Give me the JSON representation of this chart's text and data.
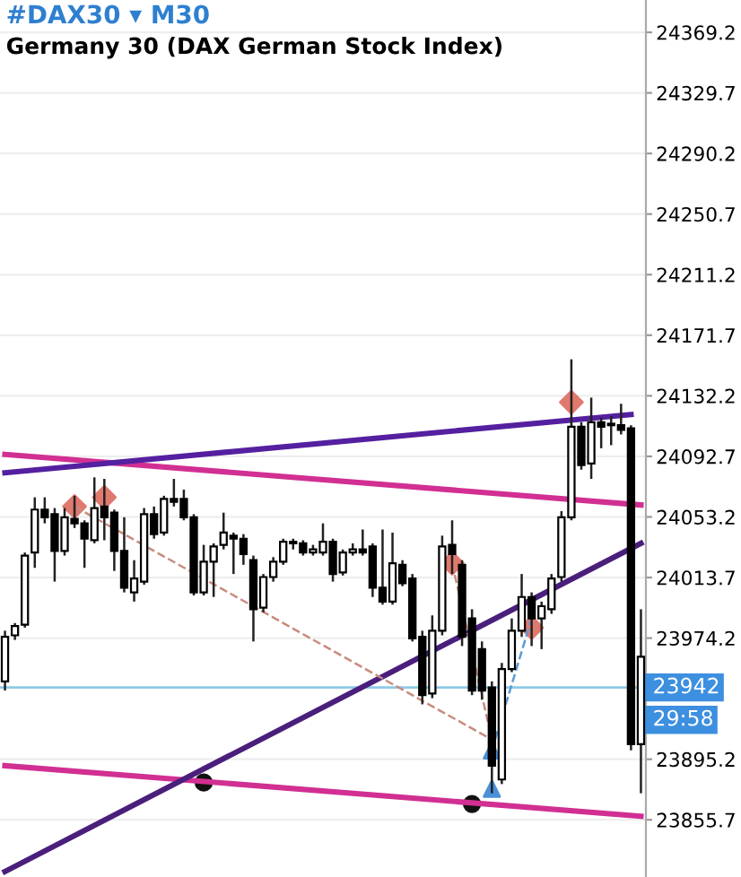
{
  "chart_data": {
    "type": "candlestick",
    "title": "#DAX30 ▾ M30",
    "subtitle": "Germany 30 (DAX German Stock Index)",
    "categories": [
      null,
      null,
      null,
      null,
      null,
      null,
      null,
      null,
      null,
      null,
      null,
      null,
      null,
      null,
      null,
      null,
      null,
      null,
      null,
      null,
      null,
      null,
      null,
      null,
      null,
      null,
      null,
      null,
      null,
      null,
      null,
      null,
      null,
      null,
      null,
      null,
      null,
      null,
      null,
      null,
      null,
      null,
      null,
      null,
      null,
      null,
      null,
      null,
      null,
      null,
      null,
      null,
      null,
      null,
      null,
      null,
      null,
      null,
      null,
      null,
      null,
      null,
      null,
      null,
      null
    ],
    "ohlc": [
      [
        23946,
        23979,
        23940,
        23975
      ],
      [
        23976,
        23984,
        23973,
        23982
      ],
      [
        23983,
        24030,
        23981,
        24028
      ],
      [
        24030,
        24066,
        24020,
        24058
      ],
      [
        24058,
        24066,
        24049,
        24053
      ],
      [
        24055,
        24059,
        24011,
        24031
      ],
      [
        24031,
        24059,
        24028,
        24053
      ],
      [
        24052,
        24067,
        24046,
        24049
      ],
      [
        24049,
        24051,
        24020,
        24039
      ],
      [
        24038,
        24079,
        24036,
        24059
      ],
      [
        24060,
        24078,
        24038,
        24053
      ],
      [
        24056,
        24058,
        24018,
        24031
      ],
      [
        24031,
        24053,
        24004,
        24007
      ],
      [
        24004,
        24025,
        23998,
        24013
      ],
      [
        24011,
        24059,
        24009,
        24055
      ],
      [
        24055,
        24060,
        24039,
        24042
      ],
      [
        24043,
        24067,
        24041,
        24065
      ],
      [
        24065,
        24078,
        24060,
        24063
      ],
      [
        24065,
        24071,
        24051,
        24053
      ],
      [
        24053,
        24055,
        24002,
        24004
      ],
      [
        24004,
        24035,
        24002,
        24024
      ],
      [
        24024,
        24036,
        24001,
        24034
      ],
      [
        24035,
        24056,
        24032,
        24043
      ],
      [
        24041,
        24043,
        24016,
        24039
      ],
      [
        24039,
        24042,
        24022,
        24029
      ],
      [
        24025,
        24028,
        23972,
        23993
      ],
      [
        23994,
        24016,
        23991,
        24014
      ],
      [
        24014,
        24027,
        24011,
        24024
      ],
      [
        24024,
        24039,
        24022,
        24037
      ],
      [
        24037,
        24039,
        24032,
        24036
      ],
      [
        24036,
        24038,
        24028,
        24030
      ],
      [
        24030,
        24035,
        24028,
        24032
      ],
      [
        24030,
        24049,
        24028,
        24037
      ],
      [
        24037,
        24039,
        24011,
        24016
      ],
      [
        24017,
        24032,
        24015,
        24030
      ],
      [
        24030,
        24036,
        24028,
        24032
      ],
      [
        24032,
        24045,
        24028,
        24030
      ],
      [
        24034,
        24036,
        24001,
        24007
      ],
      [
        24007,
        24045,
        23996,
        23998
      ],
      [
        23998,
        24043,
        23996,
        24023
      ],
      [
        24022,
        24025,
        24008,
        24010
      ],
      [
        24013,
        24016,
        23972,
        23974
      ],
      [
        23975,
        23979,
        23931,
        23937
      ],
      [
        23938,
        23989,
        23935,
        23979
      ],
      [
        23979,
        24041,
        23976,
        24034
      ],
      [
        24035,
        24051,
        24016,
        24029
      ],
      [
        24022,
        24025,
        23969,
        23975
      ],
      [
        23987,
        23993,
        23937,
        23940
      ],
      [
        23967,
        23972,
        23934,
        23940
      ],
      [
        23942,
        23946,
        23873,
        23891
      ],
      [
        23882,
        23958,
        23879,
        23954
      ],
      [
        23954,
        23987,
        23952,
        23979
      ],
      [
        23979,
        24016,
        23975,
        24001
      ],
      [
        24001,
        24004,
        23969,
        23987
      ],
      [
        23987,
        23998,
        23967,
        23995
      ],
      [
        23993,
        24016,
        23990,
        24013
      ],
      [
        24014,
        24057,
        24011,
        24053
      ],
      [
        24053,
        24156,
        24051,
        24112
      ],
      [
        24112,
        24115,
        24084,
        24087
      ],
      [
        24088,
        24131,
        24078,
        24115
      ],
      [
        24115,
        24118,
        24098,
        24112
      ],
      [
        24114,
        24119,
        24100,
        24113
      ],
      [
        24113,
        24127,
        24107,
        24110
      ],
      [
        24111,
        24113,
        23901,
        23905
      ],
      [
        23905,
        23993,
        23873,
        23962
      ]
    ],
    "series": [
      {
        "type": "line",
        "color": "#d12f92",
        "line_style": "solid",
        "values": [
          24094,
          null,
          null,
          null,
          null,
          null,
          null,
          null,
          null,
          null,
          null,
          null,
          null,
          null,
          null,
          null,
          null,
          null,
          null,
          null,
          null,
          null,
          null,
          null,
          null,
          null,
          null,
          null,
          null,
          null,
          null,
          null,
          null,
          null,
          null,
          null,
          null,
          null,
          null,
          null,
          null,
          null,
          null,
          null,
          null,
          null,
          null,
          null,
          null,
          null,
          null,
          null,
          null,
          null,
          null,
          null,
          null,
          null,
          null,
          null,
          null,
          null,
          null,
          null,
          24061
        ]
      },
      {
        "type": "line",
        "color": "#d12f92",
        "line_style": "solid",
        "values": [
          23891,
          null,
          null,
          null,
          null,
          null,
          null,
          null,
          null,
          null,
          null,
          null,
          null,
          null,
          null,
          null,
          null,
          null,
          null,
          null,
          null,
          null,
          null,
          null,
          null,
          null,
          null,
          null,
          null,
          null,
          null,
          null,
          null,
          null,
          null,
          null,
          null,
          null,
          null,
          null,
          null,
          null,
          null,
          null,
          null,
          null,
          null,
          null,
          null,
          null,
          null,
          null,
          null,
          null,
          null,
          null,
          null,
          null,
          null,
          null,
          null,
          null,
          null,
          null,
          23858
        ]
      },
      {
        "type": "line",
        "color": "#4a1f7c",
        "line_style": "solid",
        "values": [
          23822,
          null,
          null,
          null,
          null,
          null,
          null,
          null,
          null,
          null,
          null,
          null,
          null,
          null,
          null,
          null,
          null,
          null,
          null,
          null,
          null,
          null,
          null,
          null,
          null,
          null,
          null,
          null,
          null,
          null,
          null,
          null,
          null,
          null,
          null,
          null,
          null,
          null,
          null,
          null,
          null,
          null,
          null,
          null,
          null,
          null,
          null,
          null,
          null,
          null,
          null,
          null,
          null,
          null,
          null,
          null,
          null,
          null,
          null,
          null,
          null,
          null,
          null,
          null,
          24036
        ]
      },
      {
        "type": "line",
        "color": "#5420a0",
        "line_style": "solid",
        "values": [
          24082,
          null,
          null,
          null,
          null,
          null,
          null,
          null,
          null,
          null,
          null,
          null,
          null,
          null,
          null,
          null,
          null,
          null,
          null,
          null,
          null,
          null,
          null,
          null,
          null,
          null,
          null,
          null,
          null,
          null,
          null,
          null,
          null,
          null,
          null,
          null,
          null,
          null,
          null,
          null,
          null,
          null,
          null,
          null,
          null,
          null,
          null,
          null,
          null,
          null,
          null,
          null,
          null,
          null,
          null,
          null,
          null,
          null,
          null,
          null,
          null,
          null,
          null,
          24120,
          null
        ]
      },
      {
        "type": "line",
        "color": "#c98b7e",
        "line_style": "dashed",
        "values": [
          null,
          null,
          null,
          null,
          null,
          null,
          null,
          24060,
          null,
          null,
          null,
          null,
          null,
          null,
          null,
          null,
          null,
          null,
          null,
          null,
          null,
          null,
          null,
          null,
          null,
          null,
          null,
          null,
          null,
          null,
          null,
          null,
          null,
          null,
          null,
          null,
          null,
          null,
          null,
          null,
          null,
          null,
          null,
          null,
          null,
          null,
          null,
          null,
          null,
          23908,
          null,
          null,
          null,
          null,
          null,
          null,
          null,
          null,
          null,
          null,
          null,
          null,
          null,
          null,
          null
        ]
      },
      {
        "type": "line",
        "color": "#c98b7e",
        "line_style": "dashed",
        "values": [
          null,
          null,
          null,
          null,
          null,
          null,
          null,
          null,
          null,
          null,
          null,
          null,
          null,
          null,
          null,
          null,
          null,
          null,
          null,
          null,
          null,
          null,
          null,
          null,
          null,
          null,
          null,
          null,
          null,
          null,
          null,
          null,
          null,
          null,
          null,
          null,
          null,
          null,
          null,
          null,
          null,
          null,
          null,
          null,
          null,
          24023,
          null,
          null,
          null,
          23908,
          null,
          null,
          null,
          null,
          null,
          null,
          null,
          null,
          null,
          null,
          null,
          null,
          null,
          null,
          null
        ]
      },
      {
        "type": "line",
        "color": "#5b9bd5",
        "line_style": "dashed",
        "values": [
          null,
          null,
          null,
          null,
          null,
          null,
          null,
          null,
          null,
          null,
          null,
          null,
          null,
          null,
          null,
          null,
          null,
          null,
          null,
          null,
          null,
          null,
          null,
          null,
          null,
          null,
          null,
          null,
          null,
          null,
          null,
          null,
          null,
          null,
          null,
          null,
          null,
          null,
          null,
          null,
          null,
          null,
          null,
          null,
          null,
          null,
          null,
          null,
          null,
          23901,
          null,
          null,
          null,
          23987,
          null,
          null,
          null,
          null,
          null,
          null,
          null,
          null,
          null,
          null,
          null
        ]
      },
      {
        "type": "scatter",
        "color": "#e0796e",
        "marker": "diamond",
        "values": [
          null,
          null,
          null,
          null,
          null,
          null,
          null,
          24060,
          null,
          null,
          24066,
          null,
          null,
          null,
          null,
          null,
          null,
          null,
          null,
          null,
          null,
          null,
          null,
          null,
          null,
          null,
          null,
          null,
          null,
          null,
          null,
          null,
          null,
          null,
          null,
          null,
          null,
          null,
          null,
          null,
          null,
          null,
          null,
          null,
          null,
          24023,
          null,
          null,
          null,
          null,
          null,
          null,
          null,
          23981,
          null,
          null,
          null,
          24128,
          null,
          null,
          null,
          null,
          null,
          null,
          null
        ]
      },
      {
        "type": "scatter",
        "color": "#4a90d9",
        "marker": "triangle",
        "values": [
          null,
          null,
          null,
          null,
          null,
          null,
          null,
          null,
          null,
          null,
          null,
          null,
          null,
          null,
          null,
          null,
          null,
          null,
          null,
          null,
          null,
          null,
          null,
          null,
          null,
          null,
          null,
          null,
          null,
          null,
          null,
          null,
          null,
          null,
          null,
          null,
          null,
          null,
          null,
          null,
          null,
          null,
          null,
          null,
          null,
          null,
          null,
          null,
          null,
          23901,
          null,
          null,
          null,
          null,
          null,
          null,
          null,
          null,
          null,
          null,
          null,
          null,
          null,
          null,
          null
        ]
      },
      {
        "type": "scatter",
        "color": "#4a90d9",
        "marker": "triangle",
        "values": [
          null,
          null,
          null,
          null,
          null,
          null,
          null,
          null,
          null,
          null,
          null,
          null,
          null,
          null,
          null,
          null,
          null,
          null,
          null,
          null,
          null,
          null,
          null,
          null,
          null,
          null,
          null,
          null,
          null,
          null,
          null,
          null,
          null,
          null,
          null,
          null,
          null,
          null,
          null,
          null,
          null,
          null,
          null,
          null,
          null,
          null,
          null,
          null,
          null,
          23876,
          null,
          null,
          null,
          null,
          null,
          null,
          null,
          null,
          null,
          null,
          null,
          null,
          null,
          null,
          null
        ]
      },
      {
        "type": "scatter",
        "color": "#111111",
        "marker": "circle",
        "values": [
          null,
          null,
          null,
          null,
          null,
          null,
          null,
          null,
          null,
          null,
          null,
          null,
          null,
          null,
          null,
          null,
          null,
          null,
          null,
          null,
          23880,
          null,
          null,
          null,
          null,
          null,
          null,
          null,
          null,
          null,
          null,
          null,
          null,
          null,
          null,
          null,
          null,
          null,
          null,
          null,
          null,
          null,
          null,
          null,
          null,
          null,
          null,
          23866,
          null,
          null,
          null,
          null,
          null,
          null,
          null,
          null,
          null,
          null,
          null,
          null,
          null,
          null,
          null,
          null,
          null
        ]
      }
    ],
    "ref_lines": [
      {
        "axis": "y",
        "value": 23942,
        "label": "23942",
        "color": "#8ecae6"
      }
    ],
    "annotations": [
      "29:58"
    ],
    "ylim": [
      23818.4,
      24390.3
    ],
    "yticks": [
      24369.2,
      24329.7,
      24290.2,
      24250.7,
      24211.2,
      24171.7,
      24132.2,
      24092.7,
      24053.2,
      24013.7,
      23974.2,
      23895.2,
      23855.7
    ],
    "grid": "y",
    "tick_labels": "y"
  }
}
